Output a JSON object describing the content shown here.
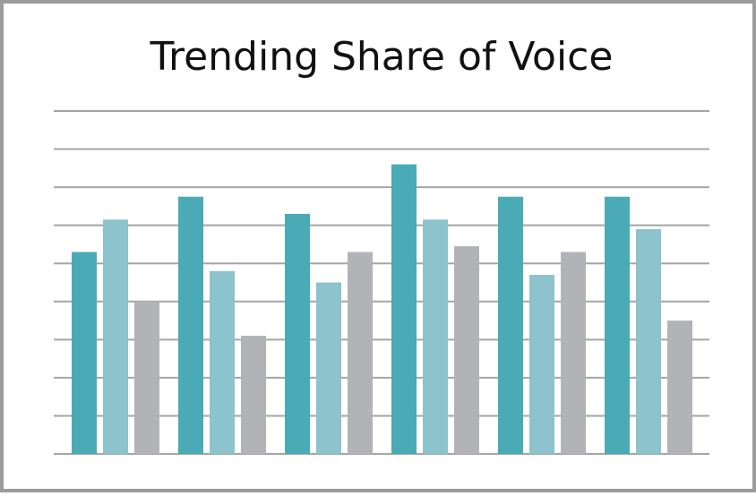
{
  "colors": {
    "series_1": "#4aaab6",
    "series_2": "#8cc3cc",
    "series_3": "#b2b3b7",
    "gridline": "#a5a5a8",
    "frame_border": "#9b9b9b"
  },
  "chart_data": {
    "type": "bar",
    "title": "Trending Share of Voice",
    "xlabel": "",
    "ylabel": "",
    "ylim": [
      0,
      9
    ],
    "grid": true,
    "legend": "none",
    "categories": [
      "",
      "",
      "",
      "",
      "",
      ""
    ],
    "series": [
      {
        "values": [
          5.3,
          6.75,
          6.3,
          7.6,
          6.75,
          6.75
        ]
      },
      {
        "values": [
          6.15,
          4.8,
          4.5,
          6.15,
          4.7,
          5.9
        ]
      },
      {
        "values": [
          4.0,
          3.1,
          5.3,
          5.45,
          5.3,
          3.5
        ]
      }
    ]
  }
}
